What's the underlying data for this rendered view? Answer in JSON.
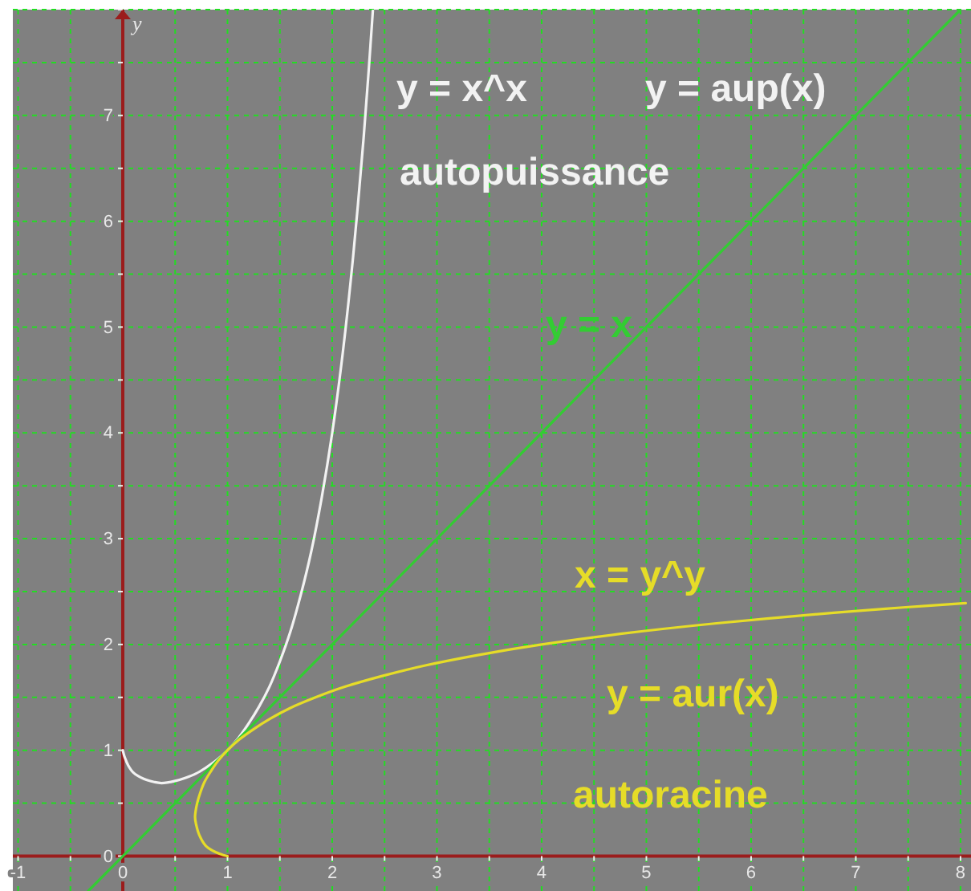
{
  "chart_data": {
    "type": "line",
    "ylabel": "y",
    "xlim": [
      -1.05,
      8.1
    ],
    "ylim": [
      -0.33,
      8
    ],
    "xticks": [
      -1,
      {
        "value": -0.5,
        "label": null
      },
      0,
      {
        "value": 0.5,
        "label": null
      },
      1,
      {
        "value": 1.5,
        "label": null
      },
      2,
      {
        "value": 2.5,
        "label": null
      },
      3,
      {
        "value": 3.5,
        "label": null
      },
      4,
      {
        "value": 4.5,
        "label": null
      },
      5,
      {
        "value": 5.5,
        "label": null
      },
      6,
      {
        "value": 6.5,
        "label": null
      },
      7,
      {
        "value": 7.5,
        "label": null
      },
      8
    ],
    "yticks": [
      0,
      {
        "value": 0.5,
        "label": null
      },
      1,
      {
        "value": 1.5,
        "label": null
      },
      2,
      {
        "value": 2.5,
        "label": null
      },
      3,
      {
        "value": 3.5,
        "label": null
      },
      4,
      {
        "value": 4.5,
        "label": null
      },
      5,
      {
        "value": 5.5,
        "label": null
      },
      6,
      {
        "value": 6.5,
        "label": null
      },
      7,
      {
        "value": 7.5,
        "label": null
      },
      {
        "value": 8,
        "label": null
      }
    ],
    "grid": true,
    "series": [
      {
        "name": "y = x^x",
        "color": "#f2f2f2",
        "x": [
          0,
          0.01,
          0.02,
          0.05,
          0.1,
          0.2,
          0.3,
          0.37,
          0.5,
          0.6,
          0.7,
          0.8,
          0.9,
          1,
          1.1,
          1.2,
          1.3,
          1.4,
          1.5,
          1.6,
          1.7,
          1.8,
          1.9,
          2,
          2.1,
          2.2,
          2.3,
          2.35,
          2.388
        ],
        "values": [
          1,
          0.96,
          0.93,
          0.86,
          0.79,
          0.73,
          0.7,
          0.69,
          0.71,
          0.74,
          0.78,
          0.84,
          0.91,
          1,
          1.11,
          1.25,
          1.41,
          1.6,
          1.84,
          2.12,
          2.47,
          2.88,
          3.39,
          4,
          4.75,
          5.67,
          6.79,
          7.45,
          7.99
        ]
      },
      {
        "name": "y = x",
        "color": "#33cc33",
        "x": [
          -0.33,
          0,
          2,
          4,
          6,
          8
        ],
        "values": [
          -0.33,
          0,
          2,
          4,
          6,
          8
        ]
      },
      {
        "name": "x = y^y",
        "color": "#e6dc28",
        "x": [
          1,
          0.96,
          0.93,
          0.86,
          0.79,
          0.73,
          0.7,
          0.69,
          0.71,
          0.74,
          0.78,
          0.84,
          0.91,
          1,
          1.11,
          1.25,
          1.41,
          1.6,
          1.84,
          2.12,
          2.47,
          2.88,
          3.39,
          4,
          4.75,
          5.67,
          6.79,
          7.45,
          8.05
        ],
        "values": [
          0,
          0.01,
          0.02,
          0.05,
          0.1,
          0.2,
          0.3,
          0.37,
          0.5,
          0.6,
          0.7,
          0.8,
          0.9,
          1,
          1.1,
          1.2,
          1.3,
          1.4,
          1.5,
          1.6,
          1.7,
          1.8,
          1.9,
          2,
          2.1,
          2.2,
          2.3,
          2.35,
          2.39
        ]
      }
    ],
    "annotations": [
      "y = aup(x)",
      "autopuissance",
      "y = aur(x)",
      "autoracine"
    ]
  }
}
